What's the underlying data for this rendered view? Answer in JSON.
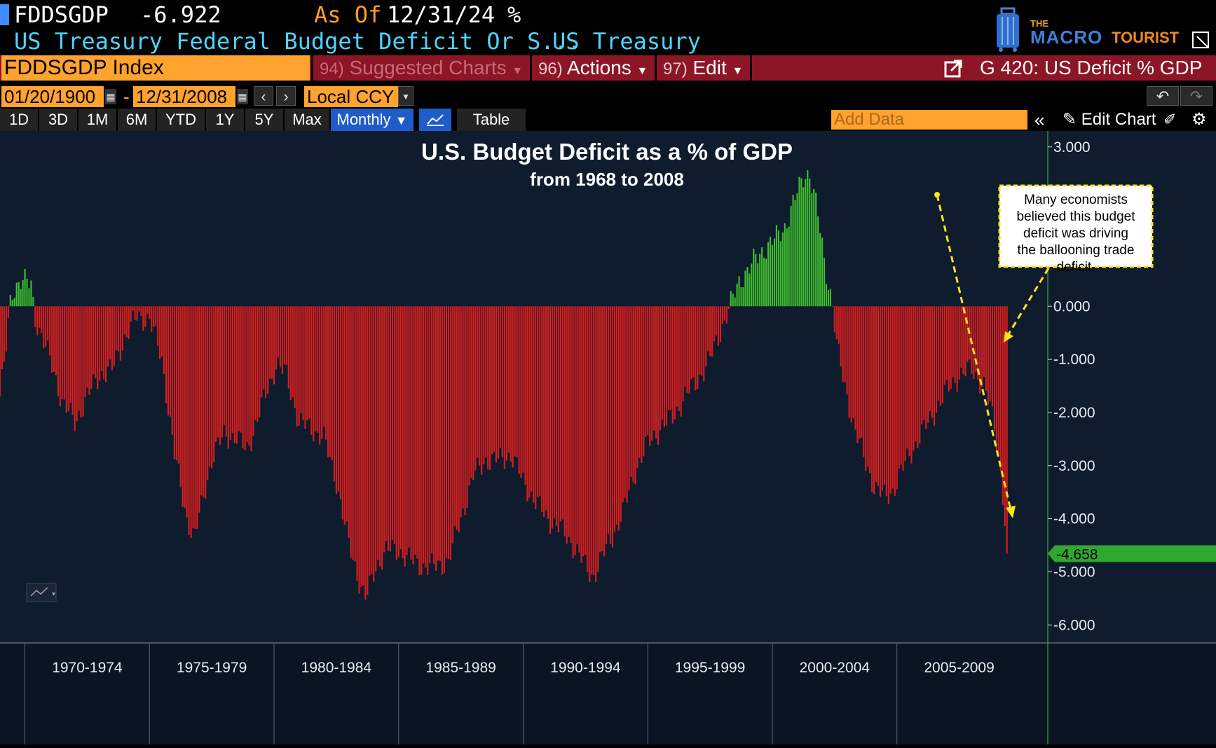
{
  "header": {
    "ticker": "FDDSGDP",
    "last_value": "-6.922",
    "as_of_label": "As Of",
    "as_of_date": "12/31/24",
    "unit": "%",
    "description": "US Treasury Federal Budget Deficit Or S...",
    "source": "US Treasury"
  },
  "logo": {
    "the": "THE",
    "macro": "MACRO",
    "tourist": "TOURIST"
  },
  "command_bar": {
    "security": "FDDSGDP Index",
    "suggested_num": "94)",
    "suggested": "Suggested Charts",
    "actions_num": "96)",
    "actions": "Actions",
    "edit_num": "97)",
    "edit": "Edit",
    "chart_name": "G 420: US Deficit % GDP"
  },
  "date_bar": {
    "start": "01/20/1900",
    "separator": "-",
    "end": "12/31/2008",
    "currency": "Local CCY"
  },
  "range_bar": {
    "buttons": [
      "1D",
      "3D",
      "1M",
      "6M",
      "YTD",
      "1Y",
      "5Y",
      "Max"
    ],
    "frequency": "Monthly",
    "table": "Table",
    "add_data_placeholder": "Add Data",
    "edit_chart": "Edit Chart"
  },
  "colors": {
    "background": "#0f1c2e",
    "negative": "#d81e1e",
    "positive": "#3fbf2f",
    "annotation": "#ffe21a"
  },
  "chart_data": {
    "type": "bar",
    "title": "U.S. Budget Deficit as a % of GDP",
    "subtitle": "from 1968 to 2008",
    "xlabel": "",
    "ylabel": "",
    "ylim": [
      -6.3,
      3.3
    ],
    "y_ticks": [
      "3.000",
      "2.000",
      "1.000",
      "0.000",
      "-1.000",
      "-2.000",
      "-3.000",
      "-4.000",
      "-5.000",
      "-6.000"
    ],
    "x_range": [
      1968.5,
      2010.5
    ],
    "x_ticks": [
      {
        "label": "1970-1974",
        "start": 1969.5,
        "end": 1974.5
      },
      {
        "label": "1975-1979",
        "start": 1974.5,
        "end": 1979.5
      },
      {
        "label": "1980-1984",
        "start": 1979.5,
        "end": 1984.5
      },
      {
        "label": "1985-1989",
        "start": 1984.5,
        "end": 1989.5
      },
      {
        "label": "1990-1994",
        "start": 1989.5,
        "end": 1994.5
      },
      {
        "label": "1995-1999",
        "start": 1994.5,
        "end": 1999.5
      },
      {
        "label": "2000-2004",
        "start": 1999.5,
        "end": 2004.5
      },
      {
        "label": "2005-2009",
        "start": 2004.5,
        "end": 2009.5
      }
    ],
    "grid": false,
    "last_value_label": "-4.658",
    "last_value": -4.658,
    "anchors": [
      {
        "x": 1968.5,
        "y": -1.7
      },
      {
        "x": 1968.75,
        "y": -0.8
      },
      {
        "x": 1968.95,
        "y": 0.25
      },
      {
        "x": 1969.3,
        "y": 0.5
      },
      {
        "x": 1969.75,
        "y": 0.4
      },
      {
        "x": 1969.9,
        "y": -0.2
      },
      {
        "x": 1970.2,
        "y": -0.6
      },
      {
        "x": 1970.7,
        "y": -1.3
      },
      {
        "x": 1971.0,
        "y": -1.8
      },
      {
        "x": 1971.5,
        "y": -2.2
      },
      {
        "x": 1972.0,
        "y": -1.7
      },
      {
        "x": 1972.5,
        "y": -1.3
      },
      {
        "x": 1973.0,
        "y": -1.2
      },
      {
        "x": 1973.5,
        "y": -0.6
      },
      {
        "x": 1974.0,
        "y": -0.2
      },
      {
        "x": 1974.5,
        "y": -0.25
      },
      {
        "x": 1975.0,
        "y": -1.0
      },
      {
        "x": 1975.5,
        "y": -2.8
      },
      {
        "x": 1976.0,
        "y": -4.0
      },
      {
        "x": 1976.3,
        "y": -4.4
      },
      {
        "x": 1976.7,
        "y": -3.5
      },
      {
        "x": 1977.0,
        "y": -2.9
      },
      {
        "x": 1977.5,
        "y": -2.4
      },
      {
        "x": 1978.0,
        "y": -2.5
      },
      {
        "x": 1978.4,
        "y": -2.7
      },
      {
        "x": 1978.8,
        "y": -2.2
      },
      {
        "x": 1979.2,
        "y": -1.6
      },
      {
        "x": 1979.6,
        "y": -1.1
      },
      {
        "x": 1980.0,
        "y": -1.3
      },
      {
        "x": 1980.5,
        "y": -2.2
      },
      {
        "x": 1981.0,
        "y": -2.3
      },
      {
        "x": 1981.5,
        "y": -2.5
      },
      {
        "x": 1982.0,
        "y": -3.3
      },
      {
        "x": 1982.5,
        "y": -4.5
      },
      {
        "x": 1983.0,
        "y": -5.3
      },
      {
        "x": 1983.2,
        "y": -5.5
      },
      {
        "x": 1983.6,
        "y": -4.9
      },
      {
        "x": 1984.0,
        "y": -4.6
      },
      {
        "x": 1984.5,
        "y": -4.6
      },
      {
        "x": 1985.0,
        "y": -4.8
      },
      {
        "x": 1985.5,
        "y": -4.9
      },
      {
        "x": 1986.0,
        "y": -4.9
      },
      {
        "x": 1986.5,
        "y": -4.8
      },
      {
        "x": 1987.0,
        "y": -4.0
      },
      {
        "x": 1987.5,
        "y": -3.2
      },
      {
        "x": 1988.0,
        "y": -2.9
      },
      {
        "x": 1988.5,
        "y": -2.9
      },
      {
        "x": 1989.0,
        "y": -2.8
      },
      {
        "x": 1989.5,
        "y": -3.3
      },
      {
        "x": 1990.0,
        "y": -3.7
      },
      {
        "x": 1990.5,
        "y": -4.0
      },
      {
        "x": 1991.0,
        "y": -4.2
      },
      {
        "x": 1991.5,
        "y": -4.5
      },
      {
        "x": 1992.0,
        "y": -4.9
      },
      {
        "x": 1992.3,
        "y": -5.1
      },
      {
        "x": 1992.8,
        "y": -4.6
      },
      {
        "x": 1993.5,
        "y": -3.9
      },
      {
        "x": 1994.0,
        "y": -3.1
      },
      {
        "x": 1994.5,
        "y": -2.6
      },
      {
        "x": 1995.0,
        "y": -2.3
      },
      {
        "x": 1995.5,
        "y": -2.1
      },
      {
        "x": 1996.0,
        "y": -1.7
      },
      {
        "x": 1996.5,
        "y": -1.4
      },
      {
        "x": 1997.0,
        "y": -1.0
      },
      {
        "x": 1997.4,
        "y": -0.5
      },
      {
        "x": 1997.8,
        "y": 0.0
      },
      {
        "x": 1998.2,
        "y": 0.5
      },
      {
        "x": 1998.7,
        "y": 0.8
      },
      {
        "x": 1999.2,
        "y": 1.1
      },
      {
        "x": 1999.7,
        "y": 1.3
      },
      {
        "x": 2000.0,
        "y": 1.5
      },
      {
        "x": 2000.4,
        "y": 2.0
      },
      {
        "x": 2000.8,
        "y": 2.5
      },
      {
        "x": 2001.0,
        "y": 2.5
      },
      {
        "x": 2001.3,
        "y": 1.8
      },
      {
        "x": 2001.6,
        "y": 0.8
      },
      {
        "x": 2001.9,
        "y": 0.1
      },
      {
        "x": 2002.1,
        "y": -0.8
      },
      {
        "x": 2002.4,
        "y": -1.5
      },
      {
        "x": 2002.8,
        "y": -2.3
      },
      {
        "x": 2003.2,
        "y": -2.9
      },
      {
        "x": 2003.6,
        "y": -3.4
      },
      {
        "x": 2004.0,
        "y": -3.6
      },
      {
        "x": 2004.3,
        "y": -3.5
      },
      {
        "x": 2004.7,
        "y": -3.1
      },
      {
        "x": 2005.0,
        "y": -2.8
      },
      {
        "x": 2005.5,
        "y": -2.4
      },
      {
        "x": 2006.0,
        "y": -2.0
      },
      {
        "x": 2006.5,
        "y": -1.6
      },
      {
        "x": 2007.0,
        "y": -1.3
      },
      {
        "x": 2007.5,
        "y": -1.2
      },
      {
        "x": 2008.0,
        "y": -1.5
      },
      {
        "x": 2008.4,
        "y": -2.2
      },
      {
        "x": 2008.7,
        "y": -3.2
      },
      {
        "x": 2008.92,
        "y": -4.658
      }
    ],
    "annotation": "Many economists believed this budget deficit was driving the ballooning trade deficit.",
    "annotation_lines": [
      "Many economists",
      "believed this budget",
      "deficit was driving",
      "the ballooning trade",
      "deficit."
    ]
  }
}
